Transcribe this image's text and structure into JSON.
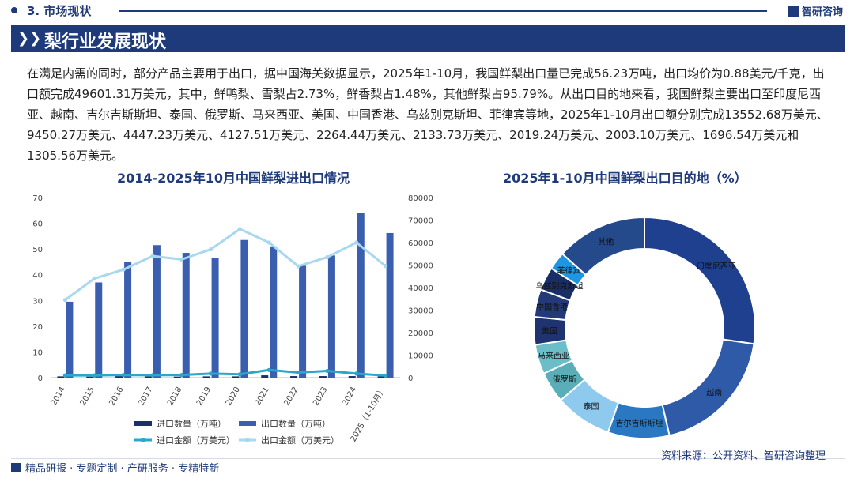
{
  "header": {
    "section": "3. 市场现状",
    "brand": "智研咨询"
  },
  "banner": {
    "title": "梨行业发展现状"
  },
  "paragraph": "在满足内需的同时，部分产品主要用于出口，据中国海关数据显示，2025年1-10月，我国鲜梨出口量已完成56.23万吨，出口均价为0.88美元/千克，出口额完成49601.31万美元，其中，鲜鸭梨、雪梨占2.73%，鲜香梨占1.48%，其他鲜梨占95.79%。从出口目的地来看，我国鲜梨主要出口至印度尼西亚、越南、吉尔吉斯斯坦、泰国、俄罗斯、马来西亚、美国、中国香港、乌兹别克斯坦、菲律宾等地，2025年1-10月出口额分别完成13552.68万美元、9450.27万美元、4447.23万美元、4127.51万美元、2264.44万美元、2133.73万美元、2019.24万美元、2003.10万美元、1696.54万美元和1305.56万美元。",
  "footer": {
    "left": "精品研报 · 专题定制 · 产研服务 · 专精特新",
    "right": "资料来源：公开资料、智研咨询整理"
  },
  "colors": {
    "navy": "#1f3a7a",
    "dark_bar": "#1b2f6e",
    "bar": "#3a5fb0",
    "line_dark": "#2aa7c9",
    "line_light": "#a8d8f0"
  },
  "chart_data": [
    {
      "type": "bar",
      "title": "2014-2025年10月中国鲜梨进出口情况",
      "categories": [
        "2014",
        "2015",
        "2016",
        "2017",
        "2018",
        "2019",
        "2020",
        "2021",
        "2022",
        "2023",
        "2024",
        "2025（1-10月）"
      ],
      "left_axis": {
        "ylim": [
          0,
          70
        ],
        "ticks": [
          "0",
          "10",
          "20",
          "30",
          "40",
          "50",
          "60",
          "70"
        ]
      },
      "right_axis": {
        "ylim": [
          0,
          80000
        ],
        "ticks": [
          "0",
          "10000",
          "20000",
          "30000",
          "40000",
          "50000",
          "60000",
          "70000",
          "80000"
        ]
      },
      "series": [
        {
          "name": "进口数量（万吨）",
          "kind": "bar",
          "axis": "left",
          "color": "#1b2f6e",
          "values": [
            0.5,
            0.4,
            0.6,
            0.5,
            0.4,
            0.5,
            0.5,
            0.9,
            0.6,
            0.6,
            0.6,
            0.5
          ]
        },
        {
          "name": "出口数量（万吨）",
          "kind": "bar",
          "axis": "left",
          "color": "#3a5fb0",
          "values": [
            29.5,
            37,
            45,
            51.5,
            48.5,
            46.5,
            53.5,
            51,
            43.5,
            47.5,
            64,
            56.2
          ]
        },
        {
          "name": "进口金额（万美元）",
          "kind": "line",
          "axis": "right",
          "color": "#2aa7c9",
          "values": [
            1000,
            1000,
            1200,
            1100,
            1200,
            1800,
            1500,
            3400,
            2300,
            3000,
            1800,
            900
          ]
        },
        {
          "name": "出口金额（万美元）",
          "kind": "line",
          "axis": "right",
          "color": "#a8d8f0",
          "values": [
            34500,
            44000,
            48000,
            54000,
            52500,
            57000,
            66000,
            60000,
            49500,
            53500,
            60000,
            49600
          ]
        }
      ]
    },
    {
      "type": "pie",
      "title": "2025年1-10月中国鲜梨出口目的地（%）",
      "labels": [
        "印度尼西亚",
        "越南",
        "吉尔吉斯斯坦",
        "泰国",
        "俄罗斯",
        "马来西亚",
        "美国",
        "中国香港",
        "乌兹别克斯坦",
        "菲律宾",
        "其他"
      ],
      "values": [
        27.32,
        19.05,
        8.97,
        8.32,
        4.57,
        4.3,
        4.07,
        4.04,
        3.42,
        2.63,
        13.31
      ],
      "colors": [
        "#1f3f8f",
        "#2f5aa8",
        "#2a78c2",
        "#8ec9ee",
        "#5aaeb8",
        "#6bbdc8",
        "#1e3370",
        "#243a78",
        "#1a2e66",
        "#2196e0",
        "#254a8c"
      ]
    }
  ]
}
